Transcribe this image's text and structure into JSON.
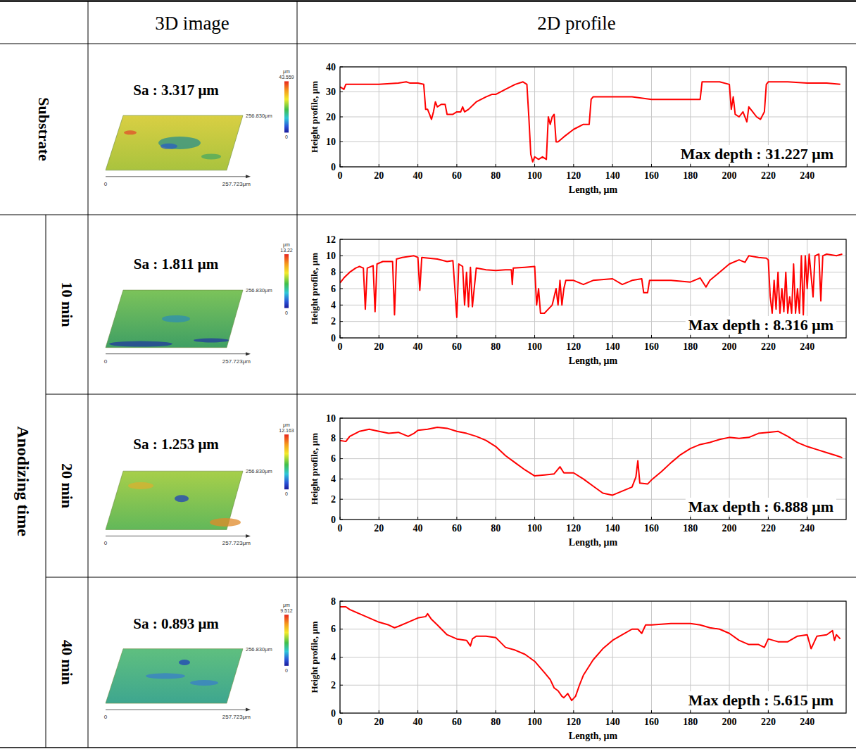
{
  "table": {
    "header": [
      "3D image",
      "2D profile"
    ],
    "group_label": "Anodizing time",
    "rows": [
      {
        "label": "Substrate",
        "sa": "Sa : 3.317 μm",
        "colorbar_unit": "μm",
        "colorbar_max": 43.559,
        "colorbar_min": 0,
        "axis_origin": "0",
        "axis_x_end": "257.723μm",
        "axis_y_end": "256.830μm"
      },
      {
        "label": "10 min",
        "sa": "Sa : 1.811 μm",
        "colorbar_unit": "μm",
        "colorbar_max": 13.22,
        "colorbar_min": 0,
        "axis_origin": "0",
        "axis_x_end": "257.723μm",
        "axis_y_end": "256.830μm"
      },
      {
        "label": "20 min",
        "sa": "Sa : 1.253 μm",
        "colorbar_unit": "μm",
        "colorbar_max": 12.163,
        "colorbar_min": 0,
        "axis_origin": "0",
        "axis_x_end": "257.723μm",
        "axis_y_end": "256.830μm"
      },
      {
        "label": "40 min",
        "sa": "Sa : 0.893 μm",
        "colorbar_unit": "μm",
        "colorbar_max": 9.512,
        "colorbar_min": 0,
        "axis_origin": "0",
        "axis_x_end": "257.723μm",
        "axis_y_end": "256.830μm"
      }
    ]
  },
  "chart_data": [
    {
      "type": "line",
      "color": "#ff0000",
      "grid": true,
      "x_label": "Length, μm",
      "y_label": "Height profile, μm",
      "annotation": "Max depth : 31.227 μm",
      "xlim": [
        0,
        260
      ],
      "xticks": [
        0,
        20,
        40,
        60,
        80,
        100,
        120,
        140,
        160,
        180,
        200,
        220,
        240
      ],
      "ylim": [
        0,
        40
      ],
      "yticks": [
        0,
        10,
        20,
        30,
        40
      ],
      "x": [
        0,
        2,
        3,
        5,
        10,
        20,
        30,
        34,
        36,
        40,
        43,
        44,
        45,
        46,
        47,
        48,
        49,
        50,
        52,
        54,
        55,
        58,
        60,
        62,
        63,
        64,
        66,
        70,
        75,
        78,
        80,
        85,
        90,
        94,
        96,
        97,
        98,
        99,
        100,
        102,
        104,
        106,
        107,
        108,
        109,
        110,
        111,
        112,
        115,
        120,
        125,
        128,
        129,
        130,
        140,
        150,
        160,
        170,
        180,
        185,
        186,
        190,
        195,
        200,
        201,
        202,
        203,
        205,
        207,
        209,
        210,
        212,
        214,
        216,
        218,
        219,
        220,
        230,
        240,
        250,
        257
      ],
      "values": [
        32,
        31,
        33,
        33,
        33,
        33,
        33.5,
        34,
        33.5,
        33.5,
        33,
        23,
        23,
        21,
        19,
        22,
        26,
        24,
        25,
        25,
        21,
        21,
        22,
        22,
        24,
        22,
        23,
        26,
        28,
        29,
        29,
        31,
        33,
        34,
        33,
        20,
        5,
        2,
        4,
        3,
        4,
        3,
        20,
        17,
        20,
        21,
        10,
        10,
        12,
        15,
        17,
        17,
        27,
        28,
        28,
        28,
        27,
        27,
        27,
        27,
        34,
        34,
        34,
        33,
        23,
        28,
        21,
        20,
        22,
        18,
        24,
        22,
        20,
        19,
        22,
        33,
        34,
        34,
        33.5,
        33.5,
        33
      ]
    },
    {
      "type": "line",
      "color": "#ff0000",
      "grid": true,
      "x_label": "Length, μm",
      "y_label": "Height profile, μm",
      "annotation": "Max depth : 8.316 μm",
      "xlim": [
        0,
        260
      ],
      "xticks": [
        0,
        20,
        40,
        60,
        80,
        100,
        120,
        140,
        160,
        180,
        200,
        220,
        240
      ],
      "ylim": [
        0,
        12
      ],
      "yticks": [
        0,
        2,
        4,
        6,
        8,
        10,
        12
      ],
      "x": [
        0,
        2,
        5,
        8,
        10,
        12,
        13,
        14,
        17,
        18,
        19,
        22,
        25,
        27,
        28,
        29,
        32,
        38,
        40,
        41,
        42,
        50,
        55,
        58,
        59,
        60,
        61,
        63,
        64,
        65,
        66,
        67,
        68,
        70,
        75,
        80,
        85,
        88,
        88.5,
        89,
        95,
        100,
        101,
        102,
        103,
        105,
        107,
        109,
        110,
        111,
        112,
        113,
        114,
        115,
        116,
        120,
        125,
        130,
        140,
        145,
        150,
        155,
        156,
        158,
        159,
        170,
        180,
        185,
        188,
        190,
        195,
        200,
        205,
        208,
        210,
        215,
        219,
        220,
        221,
        222,
        223,
        224,
        225,
        226,
        227,
        228,
        229,
        230,
        231,
        232,
        233,
        234,
        235,
        236,
        237,
        238,
        239,
        240,
        241,
        243,
        244,
        246,
        247,
        248,
        250,
        255,
        258
      ],
      "values": [
        6.7,
        7.3,
        8,
        8.5,
        8.7,
        8.5,
        3.5,
        8.5,
        8.8,
        3.2,
        9,
        9.3,
        9.3,
        9.3,
        2.8,
        9.6,
        9.8,
        10,
        9.8,
        5.8,
        9.8,
        9.6,
        9.3,
        9.4,
        6,
        2.5,
        9,
        8.7,
        4,
        8,
        3.8,
        8.6,
        3.8,
        8.5,
        8.3,
        8.2,
        8.3,
        8.3,
        6.5,
        8.5,
        8.6,
        8.7,
        4,
        6,
        3,
        3,
        3.5,
        4,
        5,
        6,
        4,
        7,
        4,
        6,
        7,
        7,
        6.5,
        7,
        7.2,
        6.5,
        7,
        7.2,
        5.5,
        5.5,
        7,
        7,
        6.8,
        7.3,
        6.2,
        7,
        8,
        9,
        9.5,
        9.2,
        10,
        9.8,
        9.7,
        9.5,
        5,
        3,
        7,
        3.5,
        8,
        3,
        6,
        3.2,
        8,
        3,
        5,
        3,
        9,
        3,
        6,
        3,
        10,
        2.8,
        10,
        6,
        10.2,
        5,
        10,
        10.2,
        4.5,
        10,
        10.2,
        10,
        10.2
      ]
    },
    {
      "type": "line",
      "color": "#ff0000",
      "grid": true,
      "x_label": "Length, μm",
      "y_label": "Height profile, μm",
      "annotation": "Max depth : 6.888 μm",
      "xlim": [
        0,
        260
      ],
      "xticks": [
        0,
        20,
        40,
        60,
        80,
        100,
        120,
        140,
        160,
        180,
        200,
        220,
        240
      ],
      "ylim": [
        0,
        10
      ],
      "yticks": [
        0,
        2,
        4,
        6,
        8,
        10
      ],
      "x": [
        0,
        3,
        5,
        10,
        15,
        20,
        25,
        30,
        35,
        38,
        40,
        45,
        50,
        55,
        60,
        65,
        70,
        75,
        80,
        85,
        90,
        95,
        100,
        105,
        110,
        113,
        115,
        120,
        125,
        130,
        135,
        140,
        145,
        150,
        152,
        153,
        154,
        158,
        160,
        165,
        170,
        175,
        180,
        185,
        190,
        195,
        200,
        205,
        210,
        215,
        220,
        225,
        230,
        235,
        240,
        245,
        250,
        255,
        258
      ],
      "values": [
        7.8,
        7.7,
        8.2,
        8.7,
        8.9,
        8.7,
        8.5,
        8.6,
        8.2,
        8.5,
        8.8,
        8.9,
        9.1,
        9,
        8.7,
        8.5,
        8.2,
        7.8,
        7.2,
        6.3,
        5.6,
        4.9,
        4.3,
        4.4,
        4.5,
        5.2,
        4.6,
        4.6,
        4,
        3.3,
        2.6,
        2.4,
        2.8,
        3.2,
        4.2,
        5.8,
        3.6,
        3.5,
        3.9,
        4.7,
        5.6,
        6.4,
        7,
        7.4,
        7.6,
        7.9,
        8.1,
        8,
        8.1,
        8.5,
        8.6,
        8.7,
        8.2,
        7.6,
        7.2,
        6.9,
        6.6,
        6.3,
        6.1
      ]
    },
    {
      "type": "line",
      "color": "#ff0000",
      "grid": true,
      "x_label": "Length, μm",
      "y_label": "Height profile, μm",
      "annotation": "Max depth : 5.615 μm",
      "xlim": [
        0,
        260
      ],
      "xticks": [
        0,
        20,
        40,
        60,
        80,
        100,
        120,
        140,
        160,
        180,
        200,
        220,
        240
      ],
      "ylim": [
        0,
        8
      ],
      "yticks": [
        0,
        2,
        4,
        6,
        8
      ],
      "x": [
        0,
        3,
        5,
        10,
        15,
        20,
        25,
        28,
        30,
        35,
        40,
        44,
        45,
        47,
        50,
        55,
        60,
        65,
        67,
        68,
        70,
        75,
        80,
        85,
        90,
        95,
        100,
        105,
        108,
        110,
        112,
        114,
        115,
        117,
        119,
        121,
        123,
        125,
        130,
        135,
        140,
        145,
        150,
        153,
        155,
        157,
        160,
        170,
        180,
        185,
        190,
        195,
        200,
        205,
        210,
        215,
        218,
        220,
        225,
        230,
        235,
        240,
        242,
        245,
        250,
        253,
        254,
        255,
        257
      ],
      "values": [
        7.6,
        7.6,
        7.4,
        7.1,
        6.8,
        6.5,
        6.3,
        6.1,
        6.2,
        6.5,
        6.8,
        6.9,
        7.1,
        6.7,
        6.3,
        5.6,
        5.3,
        5.2,
        4.8,
        5.3,
        5.5,
        5.5,
        5.4,
        4.7,
        4.5,
        4.2,
        3.7,
        2.9,
        2.4,
        1.8,
        1.6,
        1.2,
        1.1,
        1.4,
        0.9,
        1.2,
        2,
        2.7,
        3.8,
        4.6,
        5.2,
        5.6,
        6,
        6,
        5.7,
        6.3,
        6.3,
        6.4,
        6.4,
        6.3,
        6.1,
        6,
        5.7,
        5.2,
        4.9,
        4.9,
        4.7,
        5.3,
        5.1,
        5.1,
        5.5,
        5.6,
        4.6,
        5.5,
        5.6,
        5.9,
        5.2,
        5.6,
        5.3
      ]
    }
  ]
}
